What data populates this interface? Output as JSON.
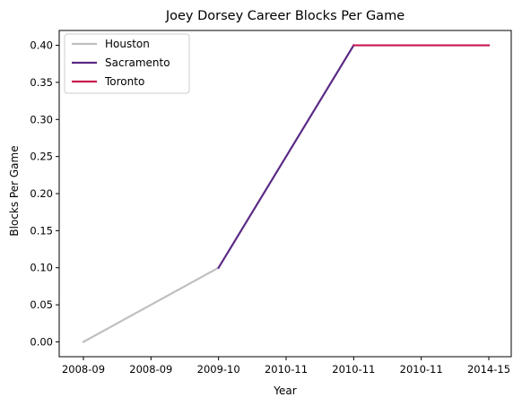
{
  "chart_data": {
    "type": "line",
    "title": "Joey Dorsey Career Blocks Per Game",
    "xlabel": "Year",
    "ylabel": "Blocks Per Game",
    "categories": [
      "2008-09",
      "2008-09",
      "2009-10",
      "2010-11",
      "2010-11",
      "2010-11",
      "2014-15"
    ],
    "ylim": [
      -0.02,
      0.42
    ],
    "yticks": [
      "0.00",
      "0.05",
      "0.10",
      "0.15",
      "0.20",
      "0.25",
      "0.30",
      "0.35",
      "0.40"
    ],
    "grid": false,
    "legend": "top-left",
    "series": [
      {
        "name": "Houston",
        "color": "#bfbfbf",
        "points": [
          [
            0,
            0.0
          ],
          [
            2,
            0.1
          ]
        ]
      },
      {
        "name": "Sacramento",
        "color": "#5b2a86",
        "points": [
          [
            2,
            0.1
          ],
          [
            4,
            0.4
          ]
        ]
      },
      {
        "name": "Toronto",
        "color": "#c8174f",
        "points": [
          [
            4,
            0.4
          ],
          [
            6,
            0.4
          ]
        ]
      }
    ]
  }
}
